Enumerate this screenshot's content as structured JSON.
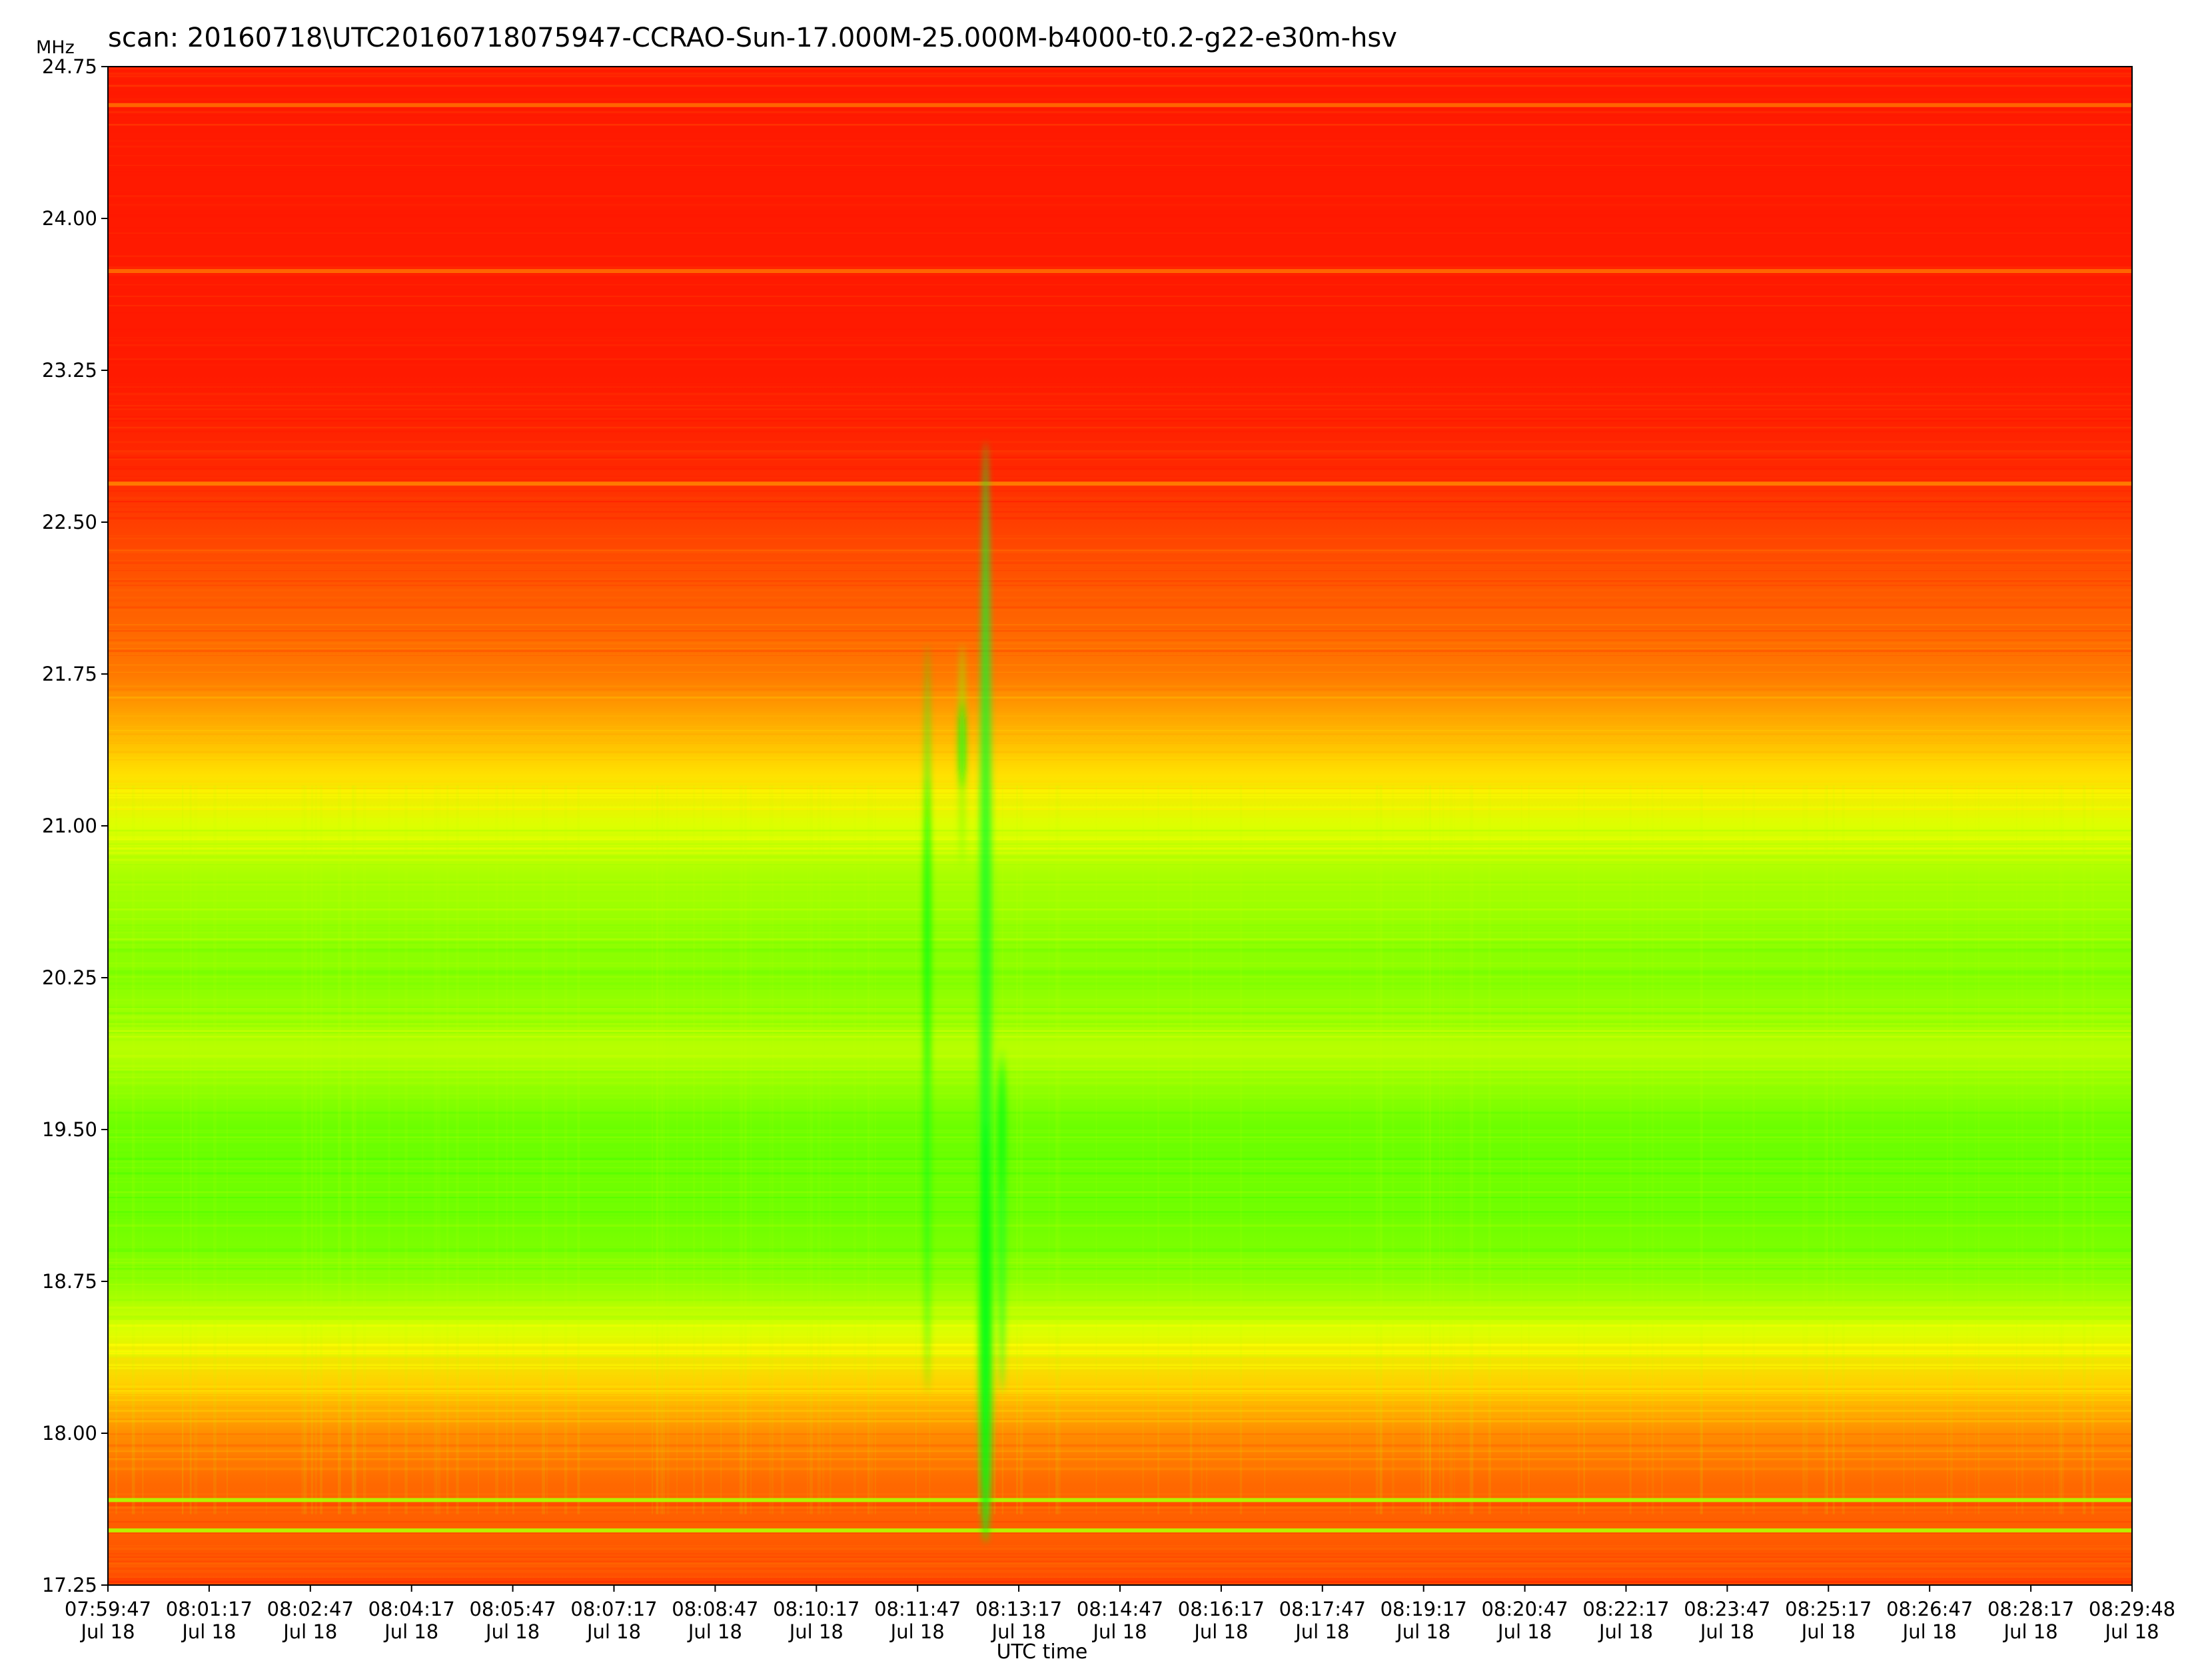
{
  "chart_data": {
    "type": "heatmap",
    "title": "scan: 20160718\\UTC20160718075947-CCRAO-Sun-17.000M-25.000M-b4000-t0.2-g22-e30m-hsv",
    "xlabel": "UTC time",
    "ylabel": "MHz",
    "ylim": [
      17.25,
      24.75
    ],
    "y_ticks": [
      "17.25",
      "18.00",
      "18.75",
      "19.50",
      "20.25",
      "21.00",
      "21.75",
      "22.50",
      "23.25",
      "24.00",
      "24.75"
    ],
    "x_ticks": [
      {
        "time": "07:59:47",
        "date": "Jul 18"
      },
      {
        "time": "08:01:17",
        "date": "Jul 18"
      },
      {
        "time": "08:02:47",
        "date": "Jul 18"
      },
      {
        "time": "08:04:17",
        "date": "Jul 18"
      },
      {
        "time": "08:05:47",
        "date": "Jul 18"
      },
      {
        "time": "08:07:17",
        "date": "Jul 18"
      },
      {
        "time": "08:08:47",
        "date": "Jul 18"
      },
      {
        "time": "08:10:17",
        "date": "Jul 18"
      },
      {
        "time": "08:11:47",
        "date": "Jul 18"
      },
      {
        "time": "08:13:17",
        "date": "Jul 18"
      },
      {
        "time": "08:14:47",
        "date": "Jul 18"
      },
      {
        "time": "08:16:17",
        "date": "Jul 18"
      },
      {
        "time": "08:17:47",
        "date": "Jul 18"
      },
      {
        "time": "08:19:17",
        "date": "Jul 18"
      },
      {
        "time": "08:20:47",
        "date": "Jul 18"
      },
      {
        "time": "08:22:17",
        "date": "Jul 18"
      },
      {
        "time": "08:23:47",
        "date": "Jul 18"
      },
      {
        "time": "08:25:17",
        "date": "Jul 18"
      },
      {
        "time": "08:26:47",
        "date": "Jul 18"
      },
      {
        "time": "08:28:17",
        "date": "Jul 18"
      },
      {
        "time": "08:29:48",
        "date": "Jul 18"
      }
    ],
    "colormap": "hsv",
    "intensity_by_frequency": [
      {
        "mhz": 24.75,
        "level": 0.0
      },
      {
        "mhz": 23.25,
        "level": 0.0
      },
      {
        "mhz": 22.75,
        "level": 0.03
      },
      {
        "mhz": 22.5,
        "level": 0.07
      },
      {
        "mhz": 21.75,
        "level": 0.18
      },
      {
        "mhz": 21.25,
        "level": 0.38
      },
      {
        "mhz": 21.0,
        "level": 0.5
      },
      {
        "mhz": 20.75,
        "level": 0.6
      },
      {
        "mhz": 20.25,
        "level": 0.67
      },
      {
        "mhz": 19.9,
        "level": 0.57
      },
      {
        "mhz": 19.5,
        "level": 0.72
      },
      {
        "mhz": 19.0,
        "level": 0.7
      },
      {
        "mhz": 18.75,
        "level": 0.65
      },
      {
        "mhz": 18.5,
        "level": 0.5
      },
      {
        "mhz": 18.25,
        "level": 0.35
      },
      {
        "mhz": 18.0,
        "level": 0.22
      },
      {
        "mhz": 17.75,
        "level": 0.15
      },
      {
        "mhz": 17.25,
        "level": 0.1
      }
    ],
    "burst_events": [
      {
        "start": "08:12:43",
        "end": "08:12:53",
        "fmin_mhz": 17.7,
        "fmax_mhz": 22.9,
        "peak_mhz": 18.5
      },
      {
        "start": "08:13:00",
        "end": "08:13:05",
        "fmin_mhz": 18.2,
        "fmax_mhz": 19.9,
        "peak_mhz": 19.5
      },
      {
        "start": "08:11:54",
        "end": "08:11:58",
        "fmin_mhz": 18.2,
        "fmax_mhz": 21.9,
        "peak_mhz": 20.5
      },
      {
        "start": "08:12:25",
        "end": "08:12:29",
        "fmin_mhz": 20.8,
        "fmax_mhz": 21.9,
        "peak_mhz": 21.4
      }
    ],
    "narrowband_lines_mhz": [
      24.56,
      23.74,
      22.69,
      17.67,
      17.52
    ],
    "colors": {
      "low": "#ff1a00",
      "mid": "#ffee00",
      "high": "#00e030"
    }
  }
}
